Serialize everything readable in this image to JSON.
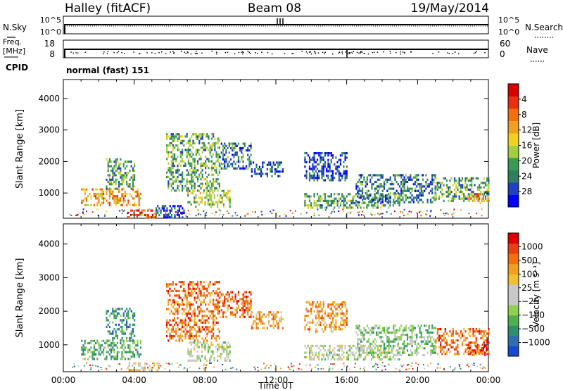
{
  "header": {
    "station": "Halley (fitACF)",
    "beam": "Beam 08",
    "date": "19/May/2014"
  },
  "left_labels": {
    "nsky": "N.Sky",
    "freq_top": "Freq.",
    "freq_unit": "[MHz]",
    "cpid": "CPID"
  },
  "right_labels": {
    "nsearch": "N.Search",
    "nave": "Nave"
  },
  "noise_panel": {
    "left_ticks": [
      "10^5",
      "10^0"
    ],
    "right_ticks": [
      "10^5",
      "10^0"
    ]
  },
  "freq_panel": {
    "left_ticks": [
      "18",
      "8"
    ],
    "right_ticks": [
      "60",
      "0"
    ]
  },
  "cpid_text": "normal (fast) 151",
  "chart_data": [
    {
      "type": "heatmap",
      "name": "power-panel",
      "ylabel": "Slant Range [km]",
      "ylim": [
        200,
        4600
      ],
      "yticks": [
        1000,
        2000,
        3000,
        4000
      ],
      "xlim": [
        0,
        24
      ],
      "colorbar": {
        "label": "Power [dB]",
        "ticks": [
          "4",
          "8",
          "12",
          "16",
          "20",
          "24",
          "28"
        ],
        "colors": [
          "#0000ff",
          "#2040c0",
          "#2f7f5f",
          "#3a9a55",
          "#a0d040",
          "#f0d020",
          "#f0a020",
          "#f07010",
          "#e83010",
          "#d80000"
        ]
      },
      "echo_regions": [
        {
          "t0": 1.0,
          "t1": 4.4,
          "r0": 580,
          "r1": 1150,
          "level": 6
        },
        {
          "t0": 2.4,
          "t1": 4.0,
          "r0": 1150,
          "r1": 2100,
          "level": 3
        },
        {
          "t0": 3.6,
          "t1": 5.2,
          "r0": 220,
          "r1": 480,
          "level": 8
        },
        {
          "t0": 5.2,
          "t1": 6.8,
          "r0": 250,
          "r1": 620,
          "level": 1
        },
        {
          "t0": 5.8,
          "t1": 8.8,
          "r0": 1100,
          "r1": 2900,
          "level": 3
        },
        {
          "t0": 7.0,
          "t1": 9.4,
          "r0": 550,
          "r1": 1100,
          "level": 4
        },
        {
          "t0": 8.8,
          "t1": 10.6,
          "r0": 1800,
          "r1": 2600,
          "level": 2
        },
        {
          "t0": 10.6,
          "t1": 12.4,
          "r0": 1500,
          "r1": 2000,
          "level": 1
        },
        {
          "t0": 13.6,
          "t1": 16.0,
          "r0": 1400,
          "r1": 2300,
          "level": 1
        },
        {
          "t0": 13.6,
          "t1": 19.0,
          "r0": 550,
          "r1": 1000,
          "level": 3
        },
        {
          "t0": 16.5,
          "t1": 21.0,
          "r0": 700,
          "r1": 1600,
          "level": 2
        },
        {
          "t0": 21.0,
          "t1": 24.0,
          "r0": 750,
          "r1": 1500,
          "level": 3
        },
        {
          "t0": 22.8,
          "t1": 24.0,
          "r0": 700,
          "r1": 1000,
          "level": 6
        }
      ]
    },
    {
      "type": "heatmap",
      "name": "velocity-panel",
      "ylabel": "Slant Range [km]",
      "ylim": [
        200,
        4600
      ],
      "yticks": [
        1000,
        2000,
        3000,
        4000
      ],
      "xlim": [
        0,
        24
      ],
      "xticks": [
        "00:00",
        "04:00",
        "08:00",
        "12:00",
        "16:00",
        "20:00",
        "00:00"
      ],
      "xlabel": "Time UT",
      "colorbar": {
        "label": "Velocity [m s⁻¹]",
        "ticks": [
          "1000",
          "500",
          "100",
          "25",
          "−25",
          "−100",
          "−500",
          "−1000"
        ],
        "colors": [
          "#1848d0",
          "#2f6fb0",
          "#2f8f6f",
          "#4fb04f",
          "#8fd04f",
          "#c8c8c8",
          "#c8c8c8",
          "#f0c030",
          "#f0a020",
          "#f07010",
          "#e84010",
          "#e00000"
        ]
      },
      "echo_regions": [
        {
          "t0": 1.0,
          "t1": 4.4,
          "r0": 580,
          "r1": 1150,
          "level": 3
        },
        {
          "t0": 2.4,
          "t1": 4.0,
          "r0": 1150,
          "r1": 2100,
          "level": 2
        },
        {
          "t0": 3.6,
          "t1": 5.4,
          "r0": 220,
          "r1": 480,
          "level": 7
        },
        {
          "t0": 5.8,
          "t1": 8.8,
          "r0": 1100,
          "r1": 2900,
          "level": 9
        },
        {
          "t0": 7.0,
          "t1": 9.4,
          "r0": 550,
          "r1": 1100,
          "level": 5
        },
        {
          "t0": 8.8,
          "t1": 10.6,
          "r0": 1800,
          "r1": 2600,
          "level": 9
        },
        {
          "t0": 10.6,
          "t1": 12.4,
          "r0": 1500,
          "r1": 2000,
          "level": 8
        },
        {
          "t0": 13.6,
          "t1": 16.0,
          "r0": 1400,
          "r1": 2300,
          "level": 8
        },
        {
          "t0": 13.6,
          "t1": 19.0,
          "r0": 550,
          "r1": 1000,
          "level": 5
        },
        {
          "t0": 16.5,
          "t1": 21.0,
          "r0": 700,
          "r1": 1600,
          "level": 4
        },
        {
          "t0": 21.0,
          "t1": 24.0,
          "r0": 750,
          "r1": 1500,
          "level": 9
        },
        {
          "t0": 22.8,
          "t1": 24.0,
          "r0": 700,
          "r1": 1000,
          "level": 10
        }
      ]
    }
  ]
}
